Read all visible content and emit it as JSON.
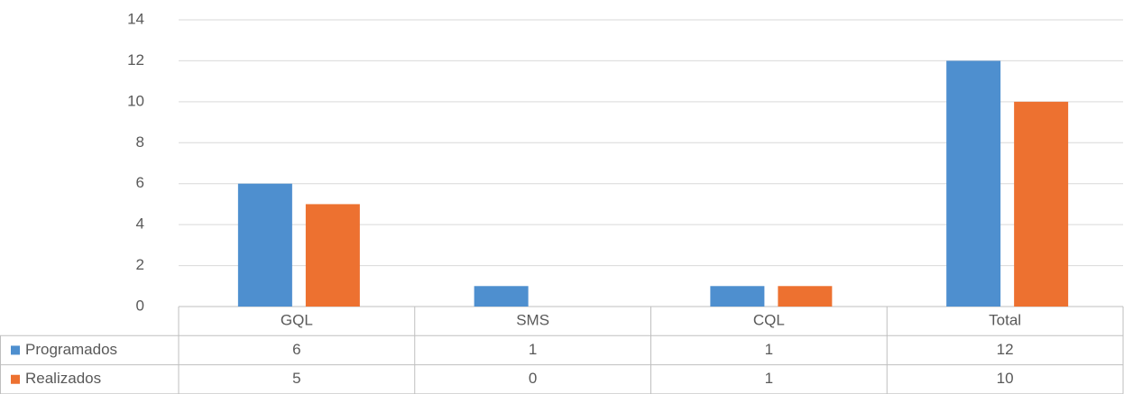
{
  "chart_data": {
    "type": "bar",
    "categories": [
      "GQL",
      "SMS",
      "CQL",
      "Total"
    ],
    "series": [
      {
        "name": "Programados",
        "color": "#4e8fcf",
        "values": [
          6,
          1,
          1,
          12
        ]
      },
      {
        "name": "Realizados",
        "color": "#ed7130",
        "values": [
          5,
          0,
          1,
          10
        ]
      }
    ],
    "ylim": [
      0,
      14
    ],
    "yticks": [
      0,
      2,
      4,
      6,
      8,
      10,
      12,
      14
    ],
    "grid": true,
    "legend": "bottom-left",
    "data_table": true
  }
}
